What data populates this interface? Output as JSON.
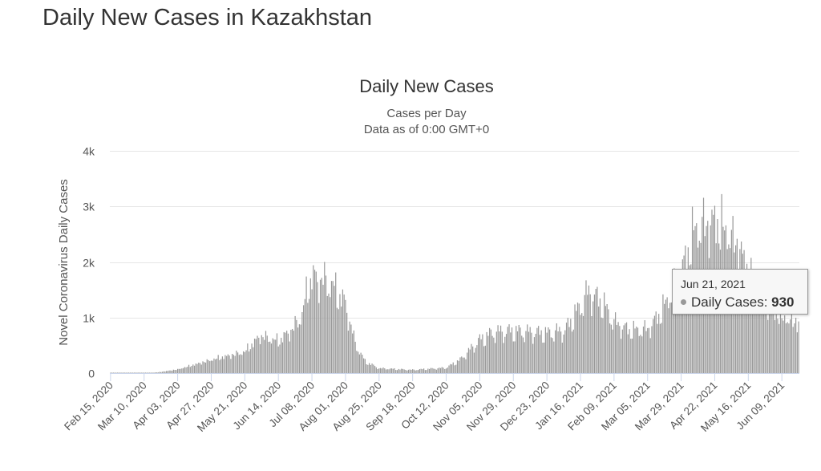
{
  "page": {
    "title": "Daily New Cases in Kazakhstan"
  },
  "chart_data": {
    "type": "bar",
    "title": "Daily New Cases",
    "subtitle": "Cases per Day",
    "subtitle2": "Data as of 0:00 GMT+0",
    "ylabel": "Novel Coronavirus Daily Cases",
    "xlabel": "",
    "ylim": [
      0,
      4000
    ],
    "y_ticks": [
      {
        "v": 0,
        "label": "0"
      },
      {
        "v": 1000,
        "label": "1k"
      },
      {
        "v": 2000,
        "label": "2k"
      },
      {
        "v": 3000,
        "label": "3k"
      },
      {
        "v": 4000,
        "label": "4k"
      }
    ],
    "x_tick_labels": [
      "Feb 15, 2020",
      "Mar 10, 2020",
      "Apr 03, 2020",
      "Apr 27, 2020",
      "May 21, 2020",
      "Jun 14, 2020",
      "Jul 08, 2020",
      "Aug 01, 2020",
      "Aug 25, 2020",
      "Sep 18, 2020",
      "Oct 12, 2020",
      "Nov 05, 2020",
      "Nov 29, 2020",
      "Dec 23, 2020",
      "Jan 16, 2021",
      "Feb 09, 2021",
      "Mar 05, 2021",
      "Mar 29, 2021",
      "Apr 22, 2021",
      "May 16, 2021",
      "Jun 09, 2021"
    ],
    "start_date": "Feb 15, 2020",
    "end_date": "Jun 21, 2021",
    "series": [
      {
        "name": "Daily Cases",
        "color": "#999999",
        "keypoints": [
          [
            "Feb 15, 2020",
            0
          ],
          [
            "Mar 10, 2020",
            0
          ],
          [
            "Mar 20, 2020",
            15
          ],
          [
            "Apr 03, 2020",
            70
          ],
          [
            "Apr 27, 2020",
            250
          ],
          [
            "May 21, 2020",
            400
          ],
          [
            "Jun 01, 2020",
            700
          ],
          [
            "Jun 14, 2020",
            600
          ],
          [
            "Jun 25, 2020",
            850
          ],
          [
            "Jul 01, 2020",
            1100
          ],
          [
            "Jul 05, 2020",
            1600
          ],
          [
            "Jul 08, 2020",
            1800
          ],
          [
            "Jul 15, 2020",
            1750
          ],
          [
            "Jul 22, 2020",
            1650
          ],
          [
            "Aug 01, 2020",
            1300
          ],
          [
            "Aug 08, 2020",
            550
          ],
          [
            "Aug 15, 2020",
            220
          ],
          [
            "Aug 25, 2020",
            90
          ],
          [
            "Sep 18, 2020",
            60
          ],
          [
            "Oct 12, 2020",
            100
          ],
          [
            "Oct 22, 2020",
            250
          ],
          [
            "Nov 05, 2020",
            620
          ],
          [
            "Nov 15, 2020",
            760
          ],
          [
            "Nov 29, 2020",
            780
          ],
          [
            "Dec 23, 2020",
            740
          ],
          [
            "Jan 05, 2021",
            800
          ],
          [
            "Jan 16, 2021",
            1250
          ],
          [
            "Jan 22, 2021",
            1520
          ],
          [
            "Feb 01, 2021",
            1300
          ],
          [
            "Feb 09, 2021",
            950
          ],
          [
            "Feb 20, 2021",
            800
          ],
          [
            "Mar 05, 2021",
            820
          ],
          [
            "Mar 15, 2021",
            1150
          ],
          [
            "Mar 29, 2021",
            1900
          ],
          [
            "Apr 08, 2021",
            2700
          ],
          [
            "Apr 22, 2021",
            2850
          ],
          [
            "May 01, 2021",
            2650
          ],
          [
            "May 10, 2021",
            2350
          ],
          [
            "May 16, 2021",
            1900
          ],
          [
            "May 25, 2021",
            1350
          ],
          [
            "Jun 09, 2021",
            1050
          ],
          [
            "Jun 21, 2021",
            930
          ]
        ]
      }
    ],
    "tooltip": {
      "date": "Jun 21, 2021",
      "label": "Daily Cases: ",
      "value": "930"
    }
  }
}
